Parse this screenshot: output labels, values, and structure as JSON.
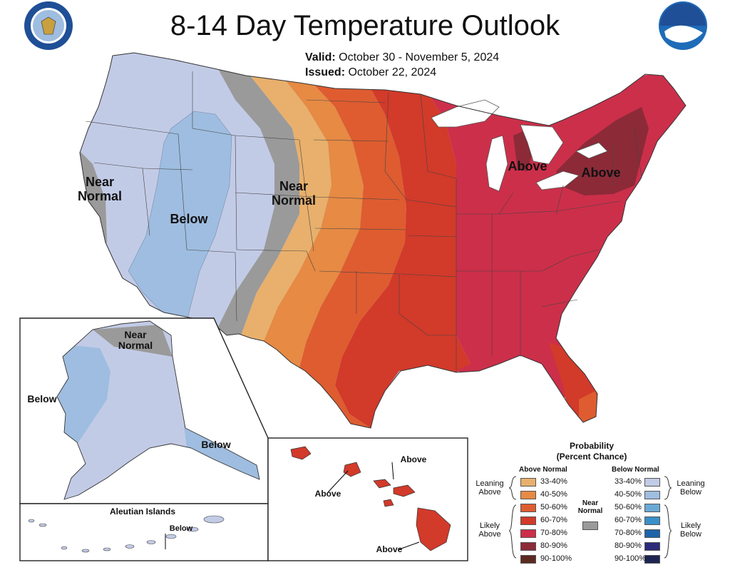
{
  "title": "8-14 Day Temperature Outlook",
  "valid_label": "Valid:",
  "valid_value": "October 30 - November 5, 2024",
  "issued_label": "Issued:",
  "issued_value": "October 22, 2024",
  "map_labels": {
    "near_normal_west": "Near Normal",
    "below_west": "Below",
    "near_normal_central": "Near Normal",
    "above_michigan": "Above",
    "above_northeast": "Above",
    "alaska_near_normal": "Near Normal",
    "alaska_below_west": "Below",
    "alaska_below_south": "Below",
    "aleutian_title": "Aleutian Islands",
    "aleutian_below": "Below",
    "hawaii_above_1": "Above",
    "hawaii_above_2": "Above",
    "hawaii_above_3": "Above"
  },
  "legend": {
    "title": "Probability",
    "subtitle": "(Percent Chance)",
    "above_header": "Above Normal",
    "below_header": "Below Normal",
    "near_normal": "Near Normal",
    "leaning_above": "Leaning Above",
    "likely_above": "Likely Above",
    "leaning_below": "Leaning Below",
    "likely_below": "Likely Below",
    "above_ranges": [
      "33-40%",
      "40-50%",
      "50-60%",
      "60-70%",
      "70-80%",
      "80-90%",
      "90-100%"
    ],
    "below_ranges": [
      "33-40%",
      "40-50%",
      "50-60%",
      "60-70%",
      "70-80%",
      "80-90%",
      "90-100%"
    ],
    "above_colors": [
      "#e8b06c",
      "#e68a44",
      "#de5c30",
      "#d23a2a",
      "#cc2f4a",
      "#8c2a38",
      "#5c2a22"
    ],
    "below_colors": [
      "#c2cbe6",
      "#9ebde0",
      "#6aaad6",
      "#3a8fc8",
      "#1f64a8",
      "#2c2a7a",
      "#1e2552"
    ],
    "near_color": "#9a9a9a"
  },
  "icons": [
    "commerce-seal-icon",
    "noaa-logo-icon"
  ]
}
